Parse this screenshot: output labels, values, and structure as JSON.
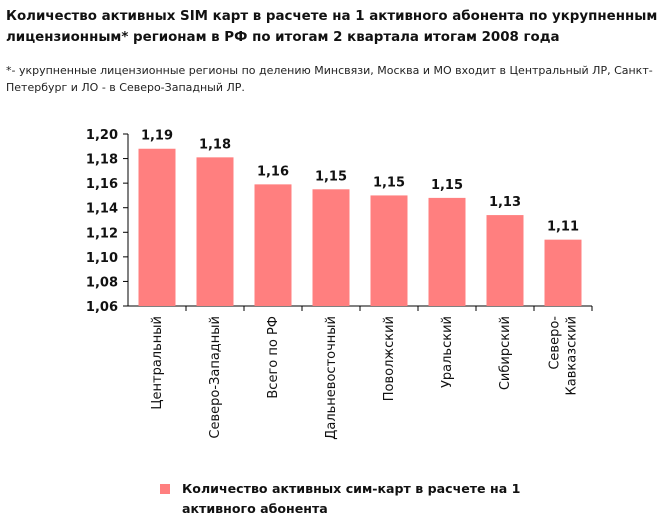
{
  "header": {
    "title": "Количество активных SIM карт в расчете на 1 активного абонента по укрупненным лицензионным* регионам в РФ по итогам 2 квартала итогам 2008 года",
    "note": "*- укрупненные лицензионные регионы по делению Минсвязи, Москва и МО входит в Центральный ЛР, Санкт-Петербург и ЛО - в Северо-Западный ЛР."
  },
  "colors": {
    "bar": "#ff7f7f",
    "axis": "#000000",
    "text": "#111111"
  },
  "chart_data": {
    "type": "bar",
    "categories": [
      "Центральный",
      "Северо-Западный",
      "Всего по РФ",
      "Дальневосточный",
      "Поволжский",
      "Уральский",
      "Сибирский",
      "Северо-\nКавказский"
    ],
    "series": [
      {
        "name": "Количество активных сим-карт в расчете на 1 активного абонента",
        "values": [
          1.188,
          1.181,
          1.159,
          1.155,
          1.15,
          1.148,
          1.134,
          1.114
        ],
        "labels": [
          "1,19",
          "1,18",
          "1,16",
          "1,15",
          "1,15",
          "1,15",
          "1,13",
          "1,11"
        ]
      }
    ],
    "ylim": [
      1.06,
      1.2
    ],
    "yticks": [
      "1,06",
      "1,08",
      "1,10",
      "1,12",
      "1,14",
      "1,16",
      "1,18",
      "1,20"
    ],
    "grid": false,
    "legend": "bottom"
  }
}
